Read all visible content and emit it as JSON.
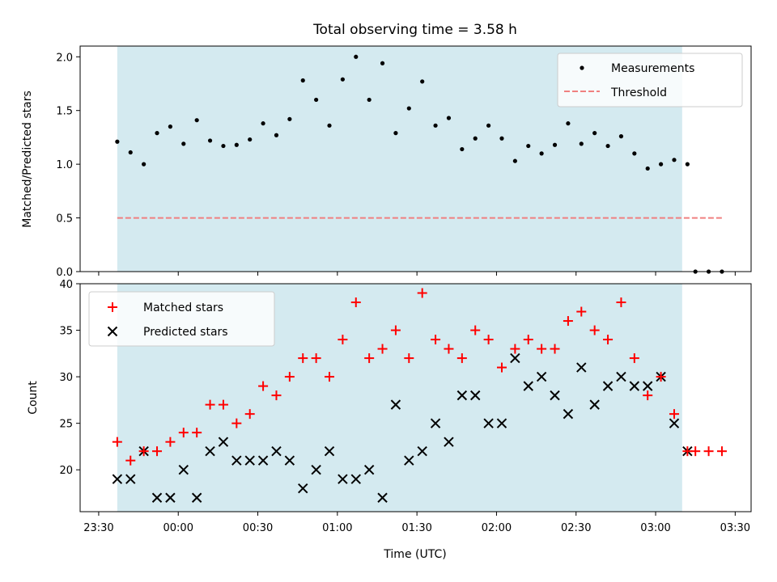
{
  "chart_data": {
    "title": "Total observing time = 3.58 h",
    "xlabel": "Time (UTC)",
    "xtick_labels": [
      "23:30",
      "00:00",
      "00:30",
      "01:00",
      "01:30",
      "02:00",
      "02:30",
      "03:00",
      "03:30"
    ],
    "xlim": [
      "23:23",
      "03:36"
    ],
    "shaded_interval": [
      "23:37",
      "03:10"
    ],
    "shade_color": "#d4eaf0",
    "panels": [
      {
        "type": "scatter",
        "ylabel": "Matched/Predicted stars",
        "ylim": [
          0,
          2.1
        ],
        "ytick_labels": [
          "0.0",
          "0.5",
          "1.0",
          "1.5",
          "2.0"
        ],
        "legend_position": "top-right",
        "series": [
          {
            "name": "Measurements",
            "marker": "dot",
            "color": "#000000",
            "x": [
              "23:37",
              "23:42",
              "23:47",
              "23:52",
              "23:57",
              "00:02",
              "00:07",
              "00:12",
              "00:17",
              "00:22",
              "00:27",
              "00:32",
              "00:37",
              "00:42",
              "00:47",
              "00:52",
              "00:57",
              "01:02",
              "01:07",
              "01:12",
              "01:17",
              "01:22",
              "01:27",
              "01:32",
              "01:37",
              "01:42",
              "01:47",
              "01:52",
              "01:57",
              "02:02",
              "02:07",
              "02:12",
              "02:17",
              "02:22",
              "02:27",
              "02:32",
              "02:37",
              "02:42",
              "02:47",
              "02:52",
              "02:57",
              "03:02",
              "03:07",
              "03:12",
              "03:15",
              "03:20",
              "03:25"
            ],
            "values": [
              1.21,
              1.11,
              1.0,
              1.29,
              1.35,
              1.19,
              1.41,
              1.22,
              1.17,
              1.18,
              1.23,
              1.38,
              1.27,
              1.42,
              1.78,
              1.6,
              1.36,
              1.79,
              2.0,
              1.6,
              1.94,
              1.29,
              1.52,
              1.77,
              1.36,
              1.43,
              1.14,
              1.24,
              1.36,
              1.24,
              1.03,
              1.17,
              1.1,
              1.18,
              1.38,
              1.19,
              1.29,
              1.17,
              1.26,
              1.1,
              0.96,
              1.0,
              1.04,
              1.0,
              0.0,
              0.0,
              0.0
            ]
          },
          {
            "name": "Threshold",
            "style": "dashed",
            "color": "#f08080",
            "x": [
              "23:37",
              "03:25"
            ],
            "values": [
              0.5,
              0.5
            ]
          }
        ]
      },
      {
        "type": "scatter",
        "ylabel": "Count",
        "ylim": [
          15.5,
          40
        ],
        "ytick_labels": [
          "20",
          "25",
          "30",
          "35",
          "40"
        ],
        "legend_position": "top-left",
        "series": [
          {
            "name": "Matched stars",
            "marker": "plus",
            "color": "#ff0000",
            "x": [
              "23:37",
              "23:42",
              "23:47",
              "23:52",
              "23:57",
              "00:02",
              "00:07",
              "00:12",
              "00:17",
              "00:22",
              "00:27",
              "00:32",
              "00:37",
              "00:42",
              "00:47",
              "00:52",
              "00:57",
              "01:02",
              "01:07",
              "01:12",
              "01:17",
              "01:22",
              "01:27",
              "01:32",
              "01:37",
              "01:42",
              "01:47",
              "01:52",
              "01:57",
              "02:02",
              "02:07",
              "02:12",
              "02:17",
              "02:22",
              "02:27",
              "02:32",
              "02:37",
              "02:42",
              "02:47",
              "02:52",
              "02:57",
              "03:02",
              "03:07",
              "03:12",
              "03:15",
              "03:20",
              "03:25"
            ],
            "values": [
              23,
              21,
              22,
              22,
              23,
              24,
              24,
              27,
              27,
              25,
              26,
              29,
              28,
              30,
              32,
              32,
              30,
              34,
              38,
              32,
              33,
              35,
              32,
              39,
              34,
              33,
              32,
              35,
              34,
              31,
              33,
              34,
              33,
              33,
              36,
              37,
              35,
              34,
              38,
              32,
              28,
              30,
              26,
              22,
              22,
              22,
              22
            ]
          },
          {
            "name": "Predicted stars",
            "marker": "x",
            "color": "#000000",
            "x": [
              "23:37",
              "23:42",
              "23:47",
              "23:52",
              "23:57",
              "00:02",
              "00:07",
              "00:12",
              "00:17",
              "00:22",
              "00:27",
              "00:32",
              "00:37",
              "00:42",
              "00:47",
              "00:52",
              "00:57",
              "01:02",
              "01:07",
              "01:12",
              "01:17",
              "01:22",
              "01:27",
              "01:32",
              "01:37",
              "01:42",
              "01:47",
              "01:52",
              "01:57",
              "02:02",
              "02:07",
              "02:12",
              "02:17",
              "02:22",
              "02:27",
              "02:32",
              "02:37",
              "02:42",
              "02:47",
              "02:52",
              "02:57",
              "03:02",
              "03:07",
              "03:12"
            ],
            "values": [
              19,
              19,
              22,
              17,
              17,
              20,
              17,
              22,
              23,
              21,
              21,
              21,
              22,
              21,
              18,
              20,
              22,
              19,
              19,
              20,
              17,
              27,
              21,
              22,
              25,
              23,
              28,
              28,
              25,
              25,
              32,
              29,
              30,
              28,
              26,
              31,
              27,
              29,
              30,
              29,
              29,
              30,
              25,
              22
            ]
          }
        ]
      }
    ]
  }
}
